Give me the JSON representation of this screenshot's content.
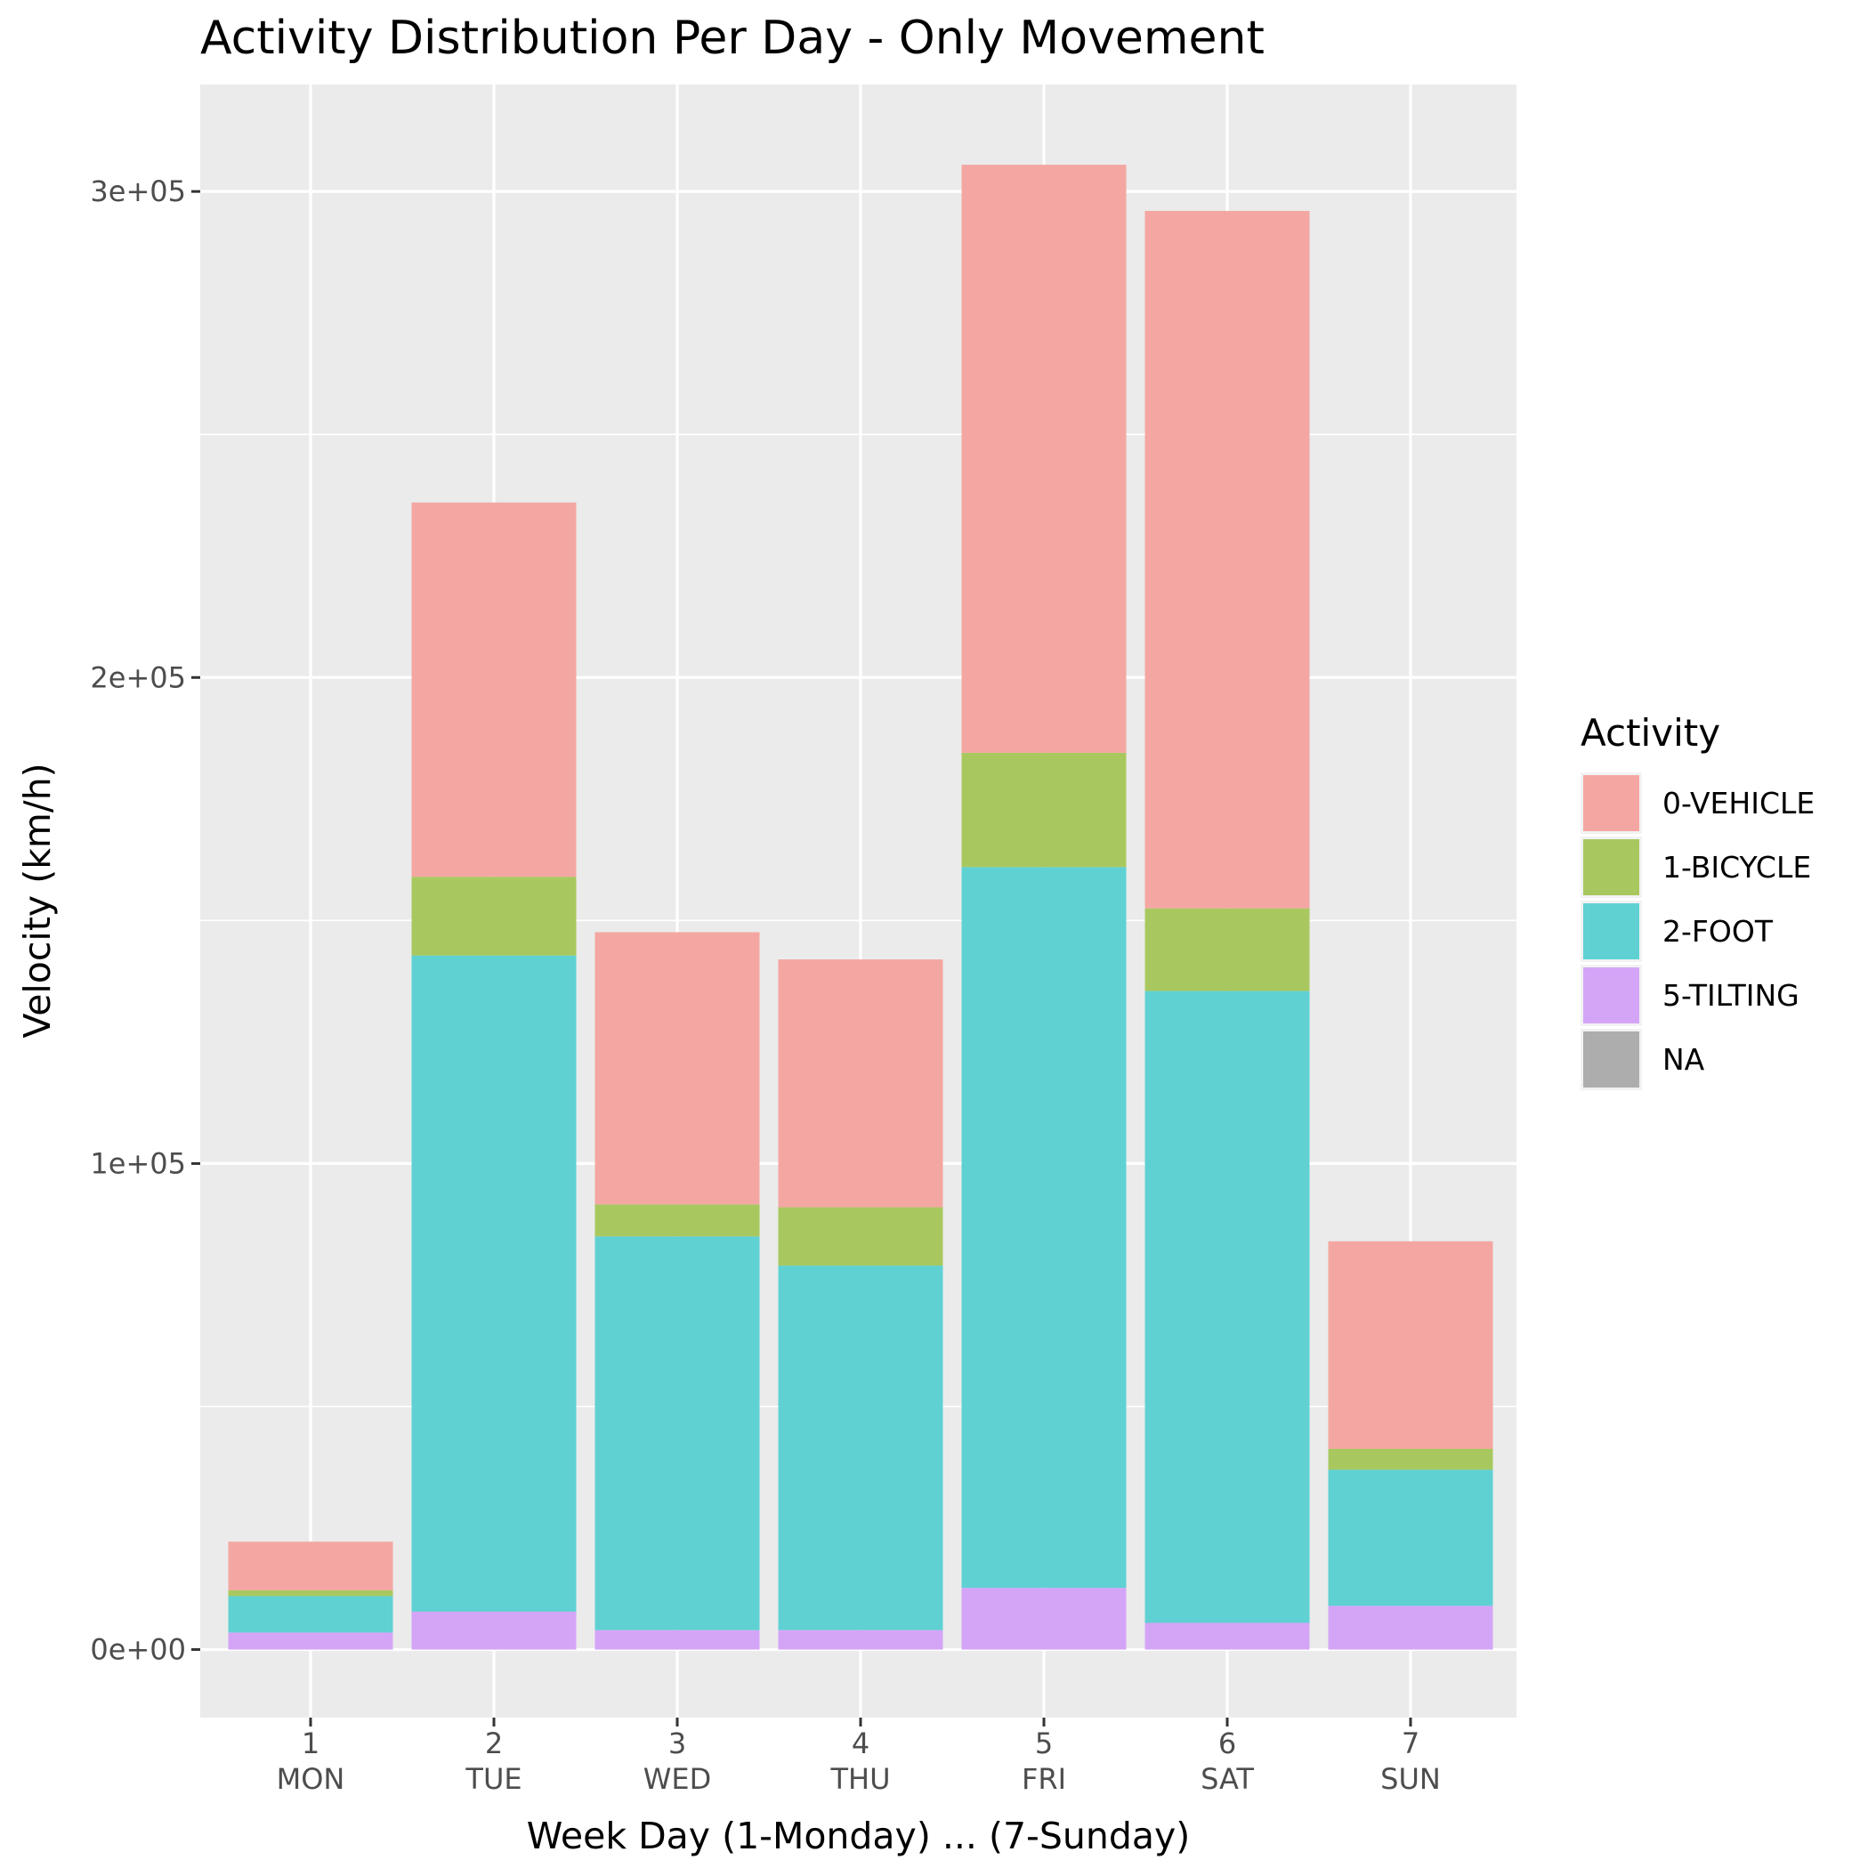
{
  "chart_data": {
    "type": "bar",
    "stacked": true,
    "title": "Activity Distribution Per Day - Only Movement",
    "xlabel": "Week Day (1-Monday) ... (7-Sunday)",
    "ylabel": "Velocity (km/h)",
    "categories": [
      "1\nMON",
      "2\nTUE",
      "3\nWED",
      "4\nTHU",
      "5\nFRI",
      "6\nSAT",
      "7\nSUN"
    ],
    "category_numbers": [
      "1",
      "2",
      "3",
      "4",
      "5",
      "6",
      "7"
    ],
    "category_days": [
      "MON",
      "TUE",
      "WED",
      "THU",
      "FRI",
      "SAT",
      "SUN"
    ],
    "ylim": [
      -14000,
      322000
    ],
    "yticks": [
      0,
      100000,
      200000,
      300000
    ],
    "ytick_labels": [
      "0e+00",
      "1e+05",
      "2e+05",
      "3e+05"
    ],
    "grid": true,
    "legend_position": "right",
    "legend_title": "Activity",
    "legend_entries": [
      "0-VEHICLE",
      "1-BICYCLE",
      "2-FOOT",
      "5-TILTING",
      "NA"
    ],
    "series": [
      {
        "name": "5-TILTING",
        "color": "#d4a5f7",
        "values": [
          3500,
          7800,
          4000,
          4000,
          12700,
          5500,
          9000
        ]
      },
      {
        "name": "2-FOOT",
        "color": "#5fd1d3",
        "values": [
          7500,
          135000,
          81000,
          75000,
          148300,
          130000,
          28000
        ]
      },
      {
        "name": "1-BICYCLE",
        "color": "#a8c85f",
        "values": [
          1200,
          16200,
          6600,
          12000,
          23500,
          17000,
          4300
        ]
      },
      {
        "name": "0-VEHICLE",
        "color": "#f4a7a2",
        "values": [
          10000,
          77000,
          56000,
          51000,
          121000,
          143500,
          42700
        ]
      },
      {
        "name": "NA",
        "color": "#adadad",
        "values": [
          0,
          0,
          0,
          0,
          0,
          0,
          0
        ]
      }
    ]
  }
}
